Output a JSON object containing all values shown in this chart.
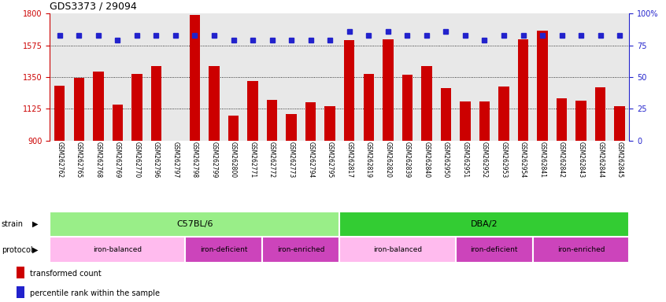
{
  "title": "GDS3373 / 29094",
  "samples": [
    "GSM262762",
    "GSM262765",
    "GSM262768",
    "GSM262769",
    "GSM262770",
    "GSM262796",
    "GSM262797",
    "GSM262798",
    "GSM262799",
    "GSM262800",
    "GSM262771",
    "GSM262772",
    "GSM262773",
    "GSM262794",
    "GSM262795",
    "GSM262817",
    "GSM262819",
    "GSM262820",
    "GSM262839",
    "GSM262840",
    "GSM262950",
    "GSM262951",
    "GSM262952",
    "GSM262953",
    "GSM262954",
    "GSM262841",
    "GSM262842",
    "GSM262843",
    "GSM262844",
    "GSM262845"
  ],
  "bar_values": [
    1290,
    1345,
    1390,
    1155,
    1370,
    1430,
    900,
    1790,
    1430,
    1075,
    1320,
    1190,
    1085,
    1170,
    1145,
    1610,
    1370,
    1620,
    1365,
    1430,
    1270,
    1175,
    1175,
    1280,
    1620,
    1680,
    1200,
    1180,
    1275,
    1145
  ],
  "percentile_values": [
    83,
    83,
    83,
    79,
    83,
    83,
    83,
    83,
    83,
    79,
    79,
    79,
    79,
    79,
    79,
    86,
    83,
    86,
    83,
    83,
    86,
    83,
    79,
    83,
    83,
    83,
    83,
    83,
    83,
    83
  ],
  "ylim_left": [
    900,
    1800
  ],
  "ylim_right": [
    0,
    100
  ],
  "yticks_left": [
    900,
    1125,
    1350,
    1575,
    1800
  ],
  "yticks_right": [
    0,
    25,
    50,
    75,
    100
  ],
  "bar_color": "#cc0000",
  "dot_color": "#2222cc",
  "bg_color": "#e8e8e8",
  "strain_groups": [
    {
      "label": "C57BL/6",
      "start": 0,
      "end": 15,
      "color": "#99ee88"
    },
    {
      "label": "DBA/2",
      "start": 15,
      "end": 30,
      "color": "#33cc33"
    }
  ],
  "protocol_groups": [
    {
      "label": "iron-balanced",
      "start": 0,
      "end": 7,
      "color": "#ffbbee"
    },
    {
      "label": "iron-deficient",
      "start": 7,
      "end": 11,
      "color": "#cc44bb"
    },
    {
      "label": "iron-enriched",
      "start": 11,
      "end": 15,
      "color": "#cc44bb"
    },
    {
      "label": "iron-balanced",
      "start": 15,
      "end": 21,
      "color": "#ffbbee"
    },
    {
      "label": "iron-deficient",
      "start": 21,
      "end": 25,
      "color": "#cc44bb"
    },
    {
      "label": "iron-enriched",
      "start": 25,
      "end": 30,
      "color": "#cc44bb"
    }
  ]
}
